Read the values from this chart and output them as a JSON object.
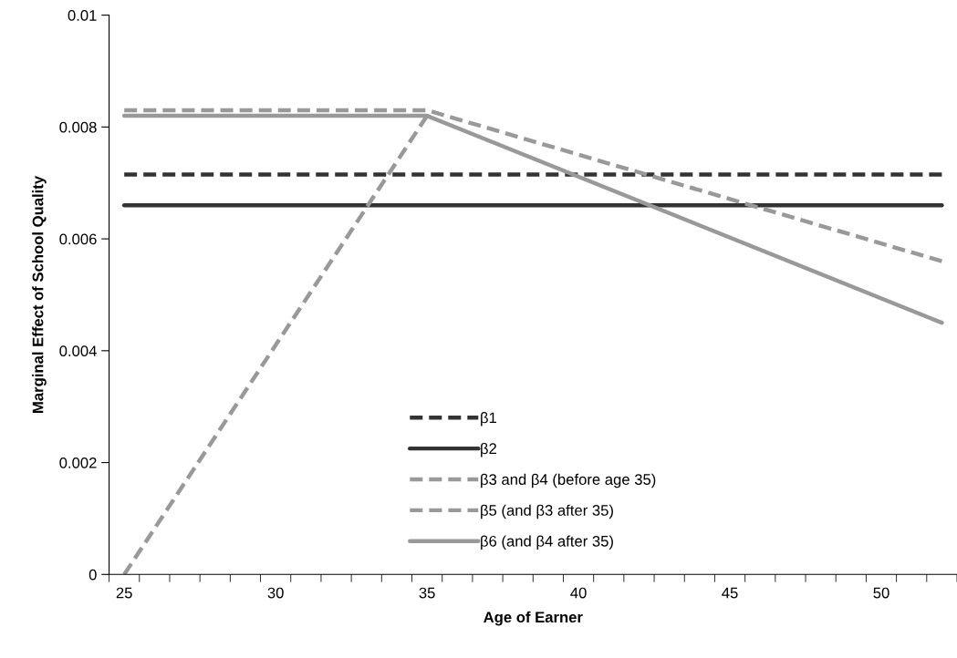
{
  "chart_data": {
    "type": "line",
    "xlabel": "Age of Earner",
    "ylabel": "Marginal Effect of School Quality",
    "series": [
      {
        "name": "β1",
        "color": "#333333",
        "line_style": "dashed",
        "x": [
          25,
          52
        ],
        "values": [
          0.00715,
          0.00715
        ]
      },
      {
        "name": "β2",
        "color": "#333333",
        "line_style": "solid",
        "x": [
          25,
          52
        ],
        "values": [
          0.0066,
          0.0066
        ]
      },
      {
        "name": "β3 and β4 (before age 35)",
        "color": "#999999",
        "line_style": "dashed",
        "x": [
          25,
          35
        ],
        "values": [
          0,
          0.0082
        ]
      },
      {
        "name": "β5 (and β3 after 35)",
        "color": "#999999",
        "line_style": "dashed",
        "x": [
          25,
          35,
          52
        ],
        "values": [
          0.0083,
          0.0083,
          0.0056
        ]
      },
      {
        "name": "β6 (and β4 after 35)",
        "color": "#999999",
        "line_style": "solid",
        "x": [
          25,
          35,
          52
        ],
        "values": [
          0.0082,
          0.0082,
          0.0045
        ]
      }
    ],
    "xlim": [
      24.5,
      52.5
    ],
    "xticks": [
      25,
      30,
      35,
      40,
      45,
      50
    ],
    "ylim": [
      0,
      0.01
    ],
    "yticks": [
      0,
      0.002,
      0.004,
      0.006,
      0.008,
      0.01
    ],
    "grid": false,
    "marker": "none",
    "legend": "bottom"
  }
}
